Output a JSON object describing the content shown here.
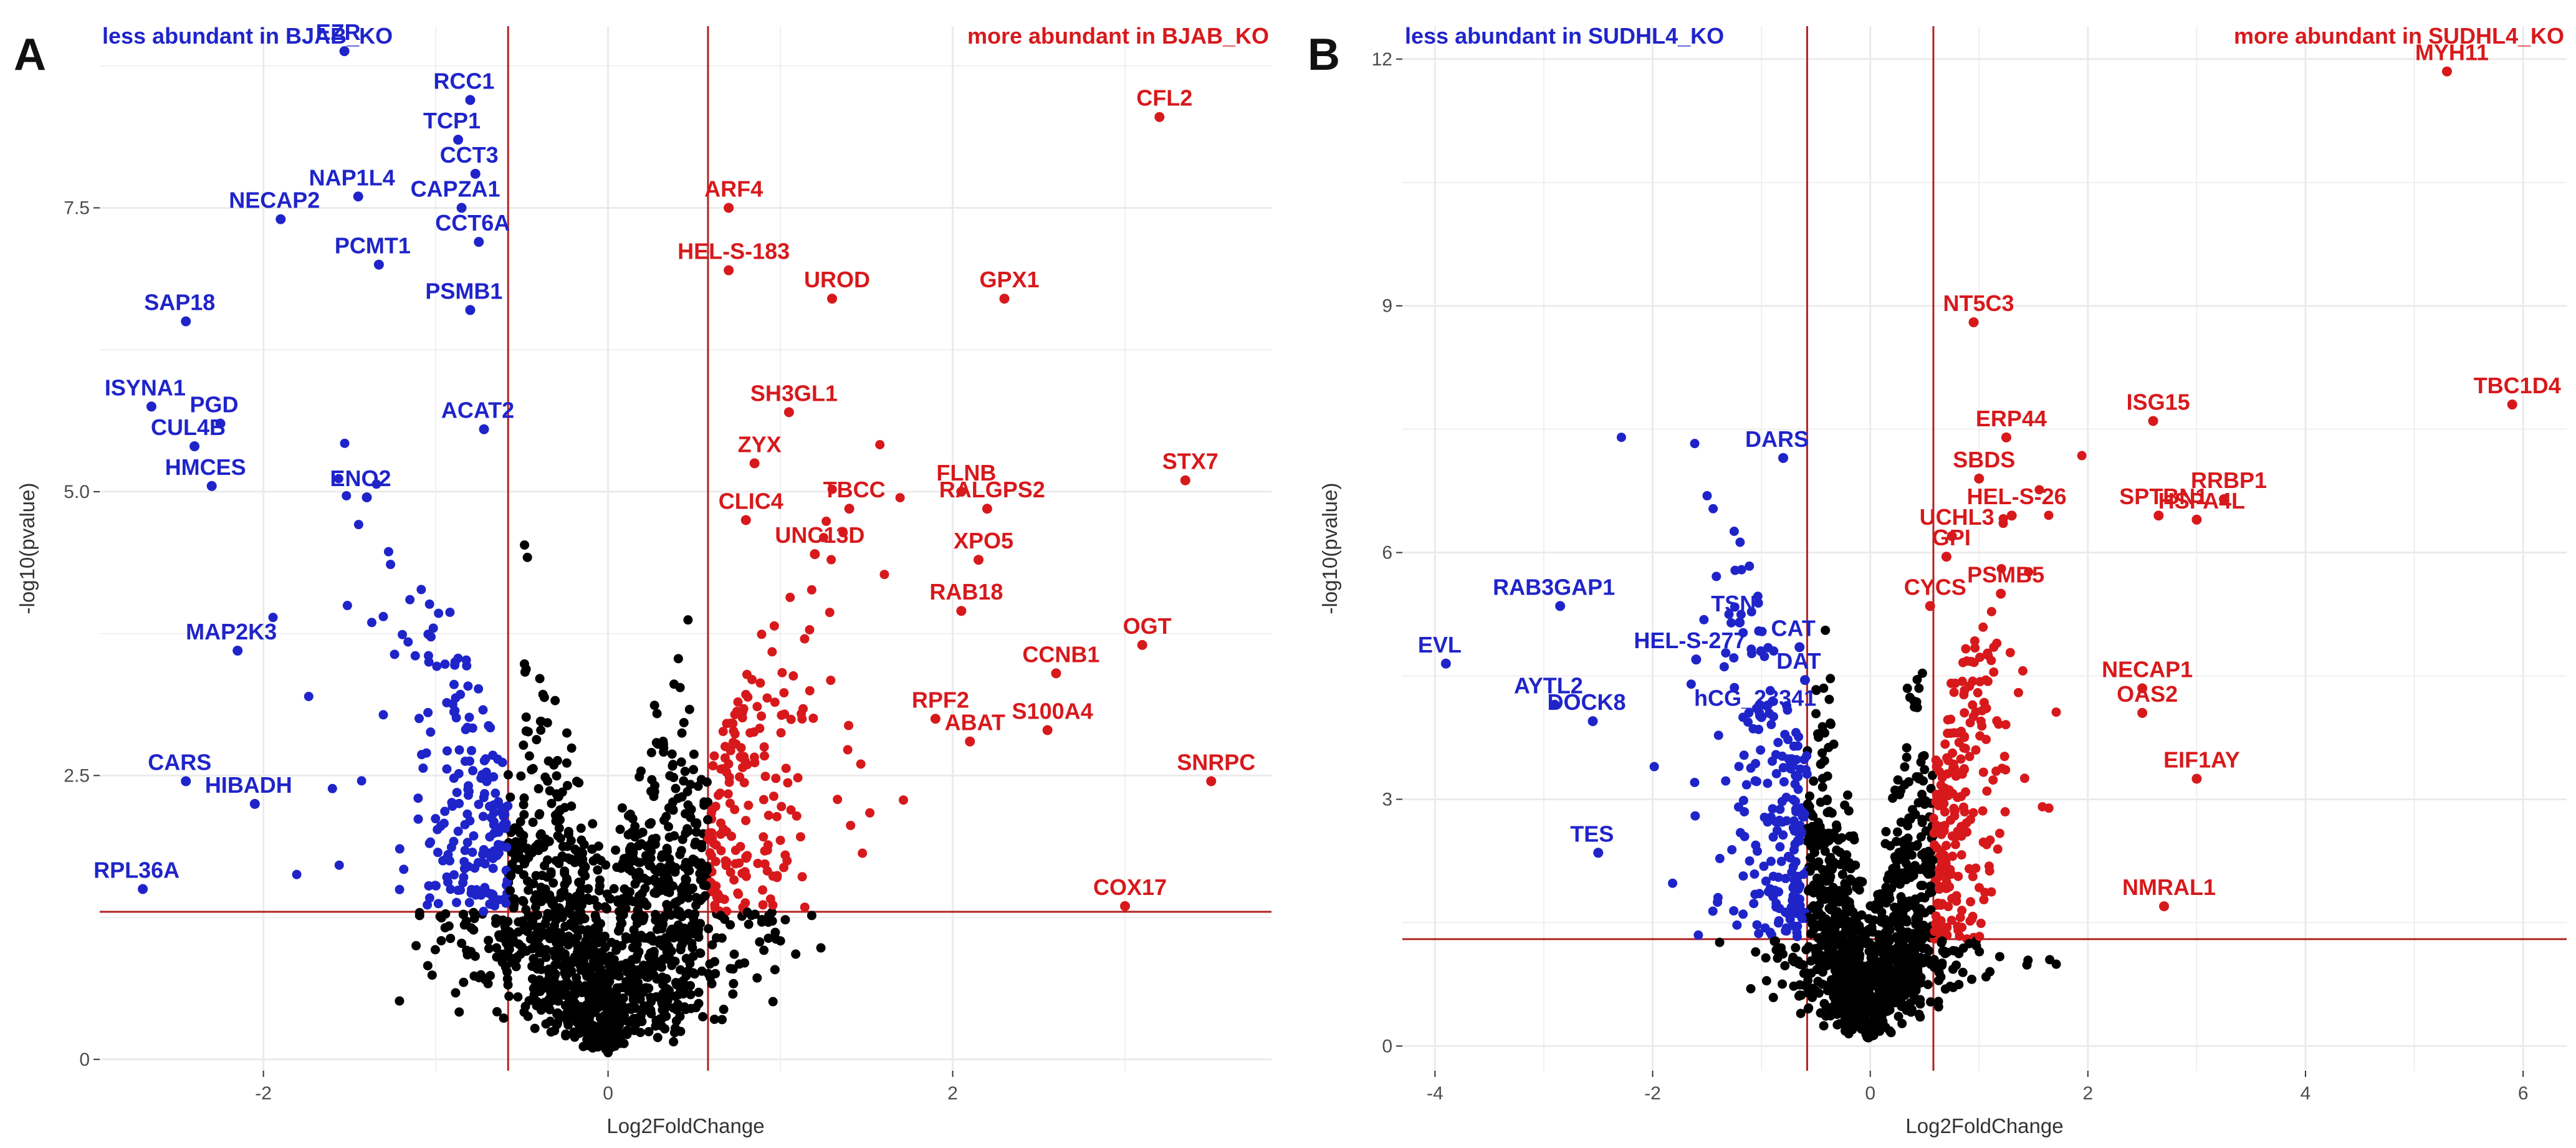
{
  "colors": {
    "up": "#d7191c",
    "down": "#1f24c9",
    "ns": "#000000",
    "threshold": "#b22222",
    "grid": "#ebebeb",
    "background": "#ffffff"
  },
  "chart_data": [
    {
      "type": "scatter",
      "panel": "A",
      "header_left": "less abundant in BJAB_KO",
      "header_right": "more abundant in BJAB_KO",
      "xlabel": "Log2FoldChange",
      "ylabel": "-log10(pvalue)",
      "xlim": [
        -2.95,
        3.85
      ],
      "ylim": [
        -0.1,
        9.1
      ],
      "x_ticks": [
        -2,
        0,
        2
      ],
      "y_ticks": [
        0,
        2.5,
        5.0,
        7.5
      ],
      "y_tick_labels": [
        "0",
        "2.5",
        "5.0",
        "7.5"
      ],
      "fc_threshold": 0.58,
      "p_threshold": 1.3,
      "labeled_points": [
        {
          "label": "EZR",
          "x": -1.53,
          "y": 8.88,
          "group": "down"
        },
        {
          "label": "RCC1",
          "x": -0.8,
          "y": 8.45,
          "group": "down"
        },
        {
          "label": "TCP1",
          "x": -0.87,
          "y": 8.1,
          "group": "down"
        },
        {
          "label": "CCT3",
          "x": -0.77,
          "y": 7.8,
          "group": "down"
        },
        {
          "label": "NAP1L4",
          "x": -1.45,
          "y": 7.6,
          "group": "down"
        },
        {
          "label": "NECAP2",
          "x": -1.9,
          "y": 7.4,
          "group": "down"
        },
        {
          "label": "CAPZA1",
          "x": -0.85,
          "y": 7.5,
          "group": "down"
        },
        {
          "label": "PCMT1",
          "x": -1.33,
          "y": 7.0,
          "group": "down"
        },
        {
          "label": "CCT6A",
          "x": -0.75,
          "y": 7.2,
          "group": "down"
        },
        {
          "label": "SAP18",
          "x": -2.45,
          "y": 6.5,
          "group": "down"
        },
        {
          "label": "PSMB1",
          "x": -0.8,
          "y": 6.6,
          "group": "down"
        },
        {
          "label": "ISYNA1",
          "x": -2.65,
          "y": 5.75,
          "group": "down"
        },
        {
          "label": "PGD",
          "x": -2.25,
          "y": 5.6,
          "group": "down"
        },
        {
          "label": "ACAT2",
          "x": -0.72,
          "y": 5.55,
          "group": "down"
        },
        {
          "label": "CUL4B",
          "x": -2.4,
          "y": 5.4,
          "group": "down"
        },
        {
          "label": "HMCES",
          "x": -2.3,
          "y": 5.05,
          "group": "down"
        },
        {
          "label": "ENO2",
          "x": -1.4,
          "y": 4.95,
          "group": "down"
        },
        {
          "label": "MAP2K3",
          "x": -2.15,
          "y": 3.6,
          "group": "down"
        },
        {
          "label": "CARS",
          "x": -2.45,
          "y": 2.45,
          "group": "down"
        },
        {
          "label": "HIBADH",
          "x": -2.05,
          "y": 2.25,
          "group": "down"
        },
        {
          "label": "RPL36A",
          "x": -2.7,
          "y": 1.5,
          "group": "down"
        },
        {
          "label": "CFL2",
          "x": 3.2,
          "y": 8.3,
          "group": "up"
        },
        {
          "label": "ARF4",
          "x": 0.7,
          "y": 7.5,
          "group": "up"
        },
        {
          "label": "HEL-S-183",
          "x": 0.7,
          "y": 6.95,
          "group": "up"
        },
        {
          "label": "GPX1",
          "x": 2.3,
          "y": 6.7,
          "group": "up"
        },
        {
          "label": "UROD",
          "x": 1.3,
          "y": 6.7,
          "group": "up"
        },
        {
          "label": "SH3GL1",
          "x": 1.05,
          "y": 5.7,
          "group": "up"
        },
        {
          "label": "ZYX",
          "x": 0.85,
          "y": 5.25,
          "group": "up"
        },
        {
          "label": "FLNB",
          "x": 2.05,
          "y": 5.0,
          "group": "up"
        },
        {
          "label": "TBCC",
          "x": 1.4,
          "y": 4.85,
          "group": "up"
        },
        {
          "label": "RALGPS2",
          "x": 2.2,
          "y": 4.85,
          "group": "up"
        },
        {
          "label": "STX7",
          "x": 3.35,
          "y": 5.1,
          "group": "up"
        },
        {
          "label": "CLIC4",
          "x": 0.8,
          "y": 4.75,
          "group": "up"
        },
        {
          "label": "XPO5",
          "x": 2.15,
          "y": 4.4,
          "group": "up"
        },
        {
          "label": "UNC13D",
          "x": 1.2,
          "y": 4.45,
          "group": "up"
        },
        {
          "label": "RAB18",
          "x": 2.05,
          "y": 3.95,
          "group": "up"
        },
        {
          "label": "OGT",
          "x": 3.1,
          "y": 3.65,
          "group": "up"
        },
        {
          "label": "CCNB1",
          "x": 2.6,
          "y": 3.4,
          "group": "up"
        },
        {
          "label": "RPF2",
          "x": 1.9,
          "y": 3.0,
          "group": "up"
        },
        {
          "label": "S100A4",
          "x": 2.55,
          "y": 2.9,
          "group": "up"
        },
        {
          "label": "ABAT",
          "x": 2.1,
          "y": 2.8,
          "group": "up"
        },
        {
          "label": "SNRPC",
          "x": 3.5,
          "y": 2.45,
          "group": "up"
        },
        {
          "label": "COX17",
          "x": 3.0,
          "y": 1.35,
          "group": "up"
        }
      ]
    },
    {
      "type": "scatter",
      "panel": "B",
      "header_left": "less abundant in SUDHL4_KO",
      "header_right": "more abundant in SUDHL4_KO",
      "xlabel": "Log2FoldChange",
      "ylabel": "-log10(pvalue)",
      "xlim": [
        -4.3,
        6.4
      ],
      "ylim": [
        -0.3,
        12.4
      ],
      "x_ticks": [
        -4,
        -2,
        0,
        2,
        4,
        6
      ],
      "y_ticks": [
        0,
        3,
        6,
        9,
        12
      ],
      "y_tick_labels": [
        "0",
        "3",
        "6",
        "9",
        "12"
      ],
      "fc_threshold": 0.58,
      "p_threshold": 1.3,
      "labeled_points": [
        {
          "label": "DARS",
          "x": -0.8,
          "y": 7.15,
          "group": "down"
        },
        {
          "label": "RAB3GAP1",
          "x": -2.85,
          "y": 5.35,
          "group": "down"
        },
        {
          "label": "TSN",
          "x": -1.2,
          "y": 5.15,
          "group": "down"
        },
        {
          "label": "HEL-S-277",
          "x": -1.6,
          "y": 4.7,
          "group": "down"
        },
        {
          "label": "CAT",
          "x": -0.65,
          "y": 4.85,
          "group": "down"
        },
        {
          "label": "DAT",
          "x": -0.6,
          "y": 4.45,
          "group": "down"
        },
        {
          "label": "EVL",
          "x": -3.9,
          "y": 4.65,
          "group": "down"
        },
        {
          "label": "AYTL2",
          "x": -2.9,
          "y": 4.15,
          "group": "down"
        },
        {
          "label": "hCG_23341",
          "x": -1.0,
          "y": 4.0,
          "group": "down"
        },
        {
          "label": "DOCK8",
          "x": -2.55,
          "y": 3.95,
          "group": "down"
        },
        {
          "label": "TES",
          "x": -2.5,
          "y": 2.35,
          "group": "down"
        },
        {
          "label": "MYH11",
          "x": 5.3,
          "y": 11.85,
          "group": "up"
        },
        {
          "label": "NT5C3",
          "x": 0.95,
          "y": 8.8,
          "group": "up"
        },
        {
          "label": "TBC1D4",
          "x": 5.9,
          "y": 7.8,
          "group": "up"
        },
        {
          "label": "ERP44",
          "x": 1.25,
          "y": 7.4,
          "group": "up"
        },
        {
          "label": "ISG15",
          "x": 2.6,
          "y": 7.6,
          "group": "up"
        },
        {
          "label": "SBDS",
          "x": 1.0,
          "y": 6.9,
          "group": "up"
        },
        {
          "label": "RRBP1",
          "x": 3.25,
          "y": 6.65,
          "group": "up"
        },
        {
          "label": "UCHL3",
          "x": 0.75,
          "y": 6.2,
          "group": "up"
        },
        {
          "label": "HEL-S-26",
          "x": 1.3,
          "y": 6.45,
          "group": "up"
        },
        {
          "label": "SPTBN1",
          "x": 2.65,
          "y": 6.45,
          "group": "up"
        },
        {
          "label": "HSPA4L",
          "x": 3.0,
          "y": 6.4,
          "group": "up"
        },
        {
          "label": "GPI",
          "x": 0.7,
          "y": 5.95,
          "group": "up"
        },
        {
          "label": "CYCS",
          "x": 0.55,
          "y": 5.35,
          "group": "up"
        },
        {
          "label": "PSMB5",
          "x": 1.2,
          "y": 5.5,
          "group": "up"
        },
        {
          "label": "NECAP1",
          "x": 2.5,
          "y": 4.35,
          "group": "up"
        },
        {
          "label": "OAS2",
          "x": 2.5,
          "y": 4.05,
          "group": "up"
        },
        {
          "label": "EIF1AY",
          "x": 3.0,
          "y": 3.25,
          "group": "up"
        },
        {
          "label": "NMRAL1",
          "x": 2.7,
          "y": 1.7,
          "group": "up"
        }
      ]
    }
  ]
}
